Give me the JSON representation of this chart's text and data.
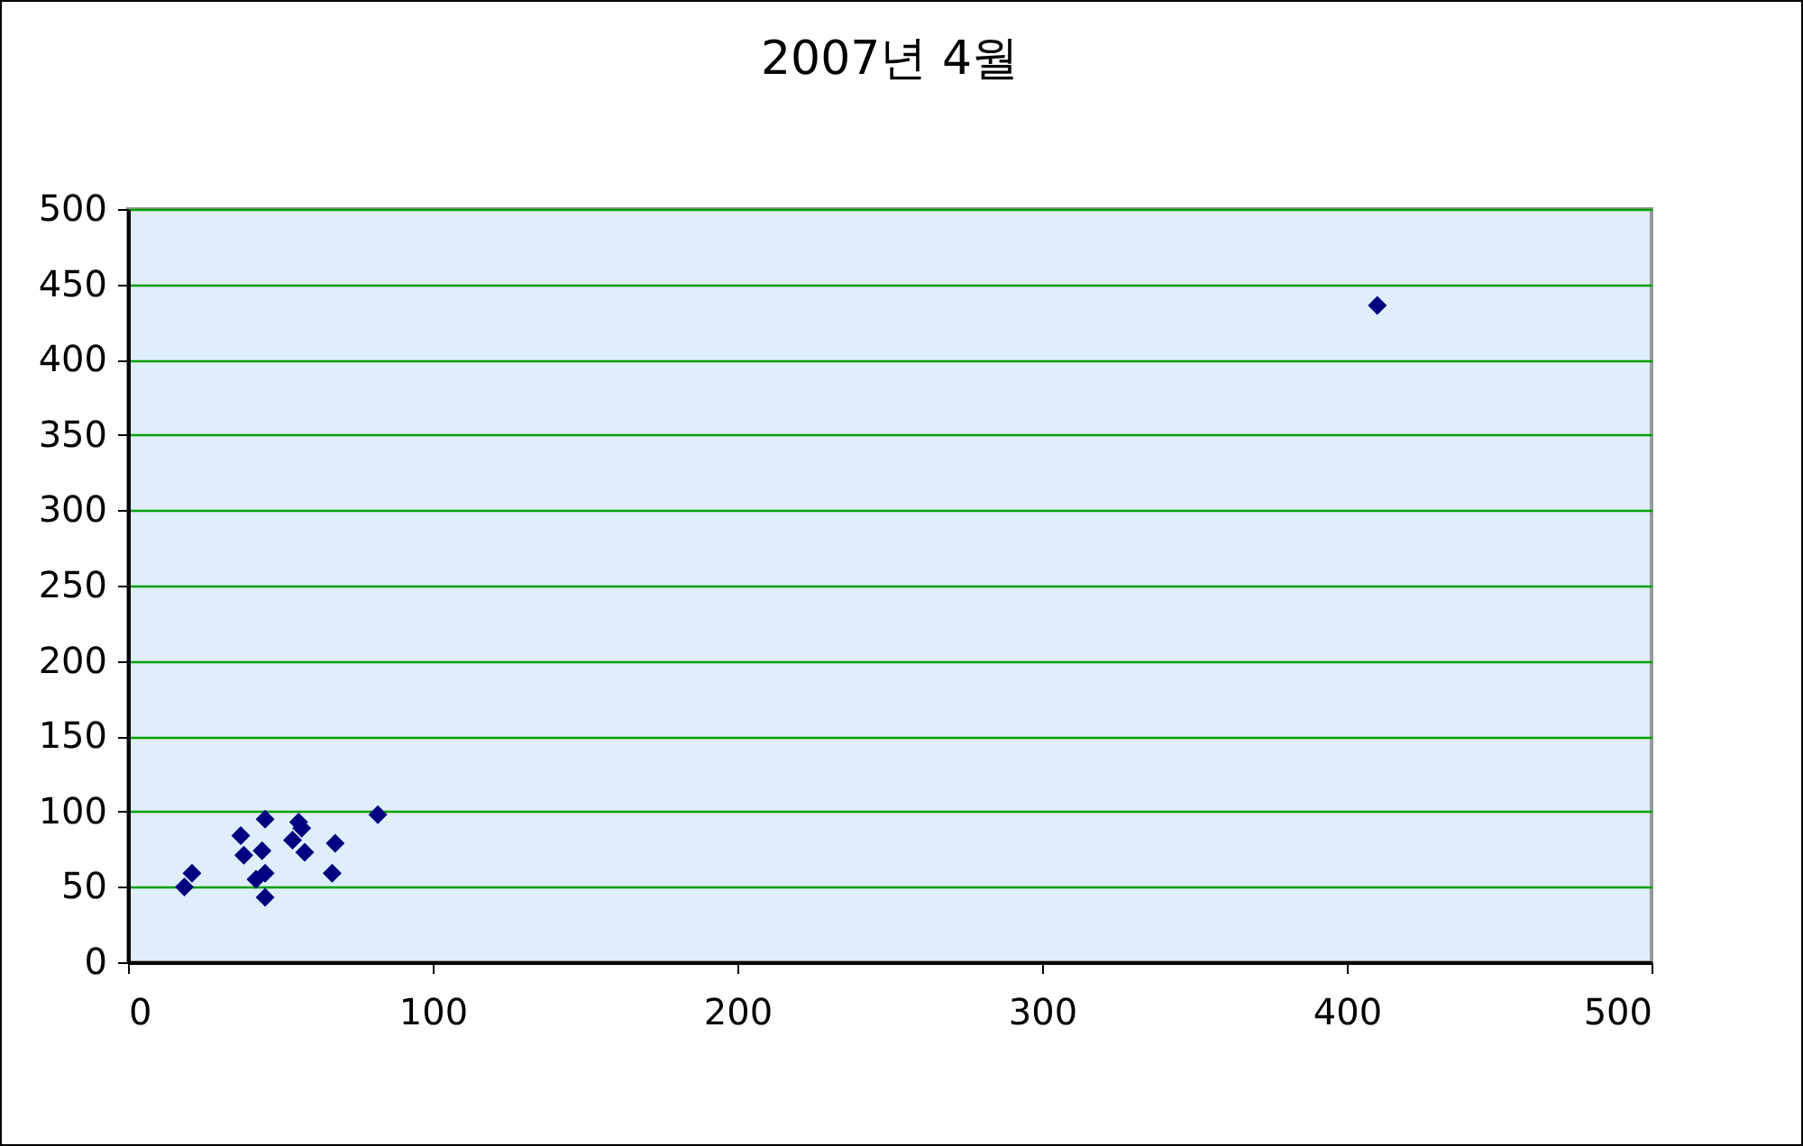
{
  "chart_data": {
    "type": "scatter",
    "title": "2007년 4월",
    "x": [
      18.5,
      21,
      37,
      45,
      38,
      44,
      42,
      45,
      45,
      56,
      57,
      54,
      58,
      68,
      67,
      82,
      410
    ],
    "series": [
      {
        "color": "#000080",
        "values": [
          50,
          59,
          84,
          95,
          71,
          74,
          55,
          59,
          43,
          93,
          89,
          81,
          73,
          79,
          59,
          98,
          436
        ]
      }
    ],
    "marker": "diamond",
    "grid": "y",
    "xlim": [
      0,
      500
    ],
    "xticks": [
      0,
      100,
      200,
      300,
      400,
      500
    ],
    "ylim": [
      0,
      500
    ],
    "yticks": [
      0,
      50,
      100,
      150,
      200,
      250,
      300,
      350,
      400,
      450,
      500
    ]
  }
}
